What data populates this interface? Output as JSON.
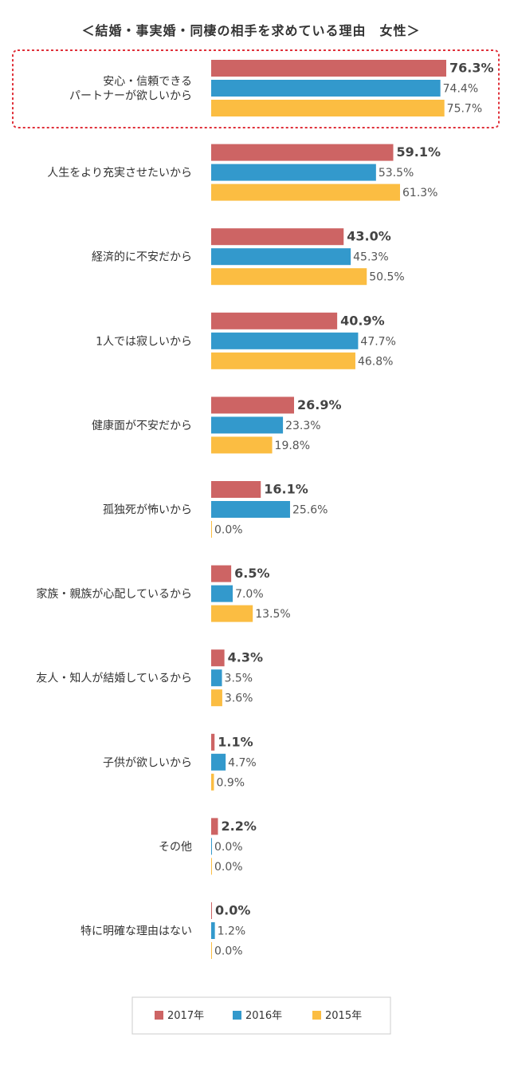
{
  "chart_data": {
    "type": "bar",
    "orientation": "horizontal",
    "title": "＜結婚・事実婚・同棲の相手を求めている理由　女性＞",
    "categories": [
      [
        "安心・信頼できる",
        "パートナーが欲しいから"
      ],
      [
        "人生をより充実させたいから"
      ],
      [
        "経済的に不安だから"
      ],
      [
        "1人では寂しいから"
      ],
      [
        "健康面が不安だから"
      ],
      [
        "孤独死が怖いから"
      ],
      [
        "家族・親族が心配しているから"
      ],
      [
        "友人・知人が結婚しているから"
      ],
      [
        "子供が欲しいから"
      ],
      [
        "その他"
      ],
      [
        "特に明確な理由はない"
      ]
    ],
    "series": [
      {
        "name": "2017年",
        "color": "#cd6464",
        "values": [
          76.3,
          59.1,
          43.0,
          40.9,
          26.9,
          16.1,
          6.5,
          4.3,
          1.1,
          2.2,
          0.0
        ]
      },
      {
        "name": "2016年",
        "color": "#3399cc",
        "values": [
          74.4,
          53.5,
          45.3,
          47.7,
          23.3,
          25.6,
          7.0,
          3.5,
          4.7,
          0.0,
          1.2
        ]
      },
      {
        "name": "2015年",
        "color": "#fbbd42",
        "values": [
          75.7,
          61.3,
          50.5,
          46.8,
          19.8,
          0.0,
          13.5,
          3.6,
          0.9,
          0.0,
          0.0
        ]
      }
    ],
    "value_suffix": "%",
    "xlim": [
      0,
      76.3
    ],
    "highlight_category": 0,
    "highlight_color": "#e0303a",
    "legend": "bottom"
  }
}
